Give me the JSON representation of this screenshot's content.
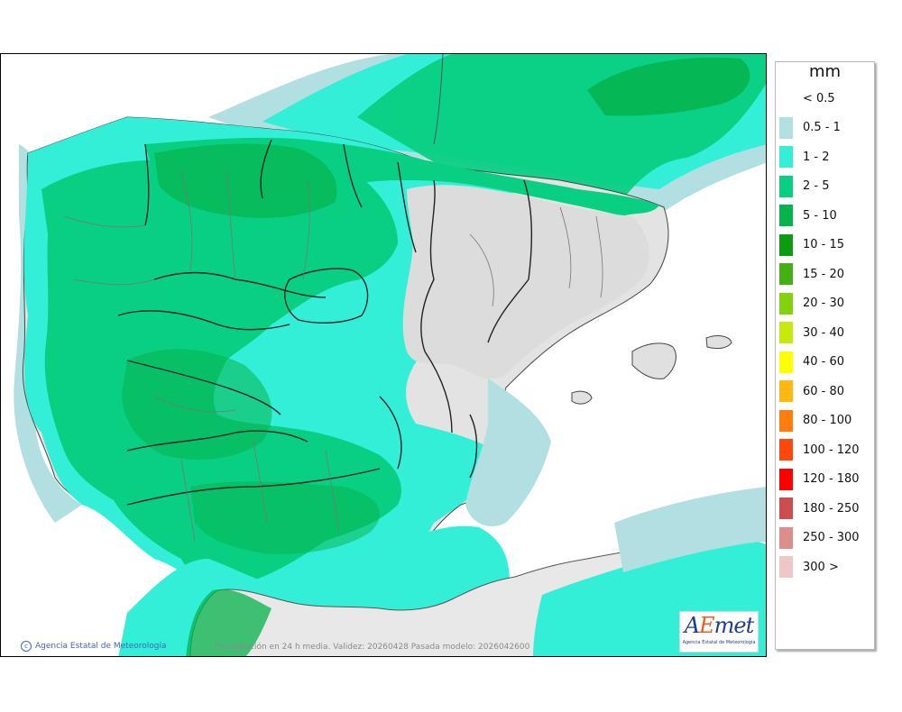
{
  "map": {
    "credit": "Agencia Estatal de Meteorología",
    "caption": "Precipitación en 24 h media. Validez: 20260428 Pasada modelo: 2026042600",
    "logo_text": "AEmet",
    "logo_subtitle": "Agencia Estatal de Meteorología"
  },
  "legend": {
    "unit": "mm",
    "items": [
      {
        "label": "< 0.5",
        "color": ""
      },
      {
        "label": "0.5 - 1",
        "color": "#b2dfe2"
      },
      {
        "label": "1 - 2",
        "color": "#33efd8"
      },
      {
        "label": "2 - 5",
        "color": "#09cf83"
      },
      {
        "label": "5 - 10",
        "color": "#06b34c"
      },
      {
        "label": "10 - 15",
        "color": "#0c9c11"
      },
      {
        "label": "15 - 20",
        "color": "#44b011"
      },
      {
        "label": "20 - 30",
        "color": "#84d20c"
      },
      {
        "label": "30 - 40",
        "color": "#c6ea0b"
      },
      {
        "label": "40 - 60",
        "color": "#ffff00"
      },
      {
        "label": "60 - 80",
        "color": "#ffb811"
      },
      {
        "label": "80 - 100",
        "color": "#ff7d0c"
      },
      {
        "label": "100 - 120",
        "color": "#ff470c"
      },
      {
        "label": "120 - 180",
        "color": "#ff0000"
      },
      {
        "label": "180 - 250",
        "color": "#cc4d4d"
      },
      {
        "label": "250 - 300",
        "color": "#de8d8d"
      },
      {
        "label": "300 >",
        "color": "#eec6c6"
      }
    ]
  }
}
